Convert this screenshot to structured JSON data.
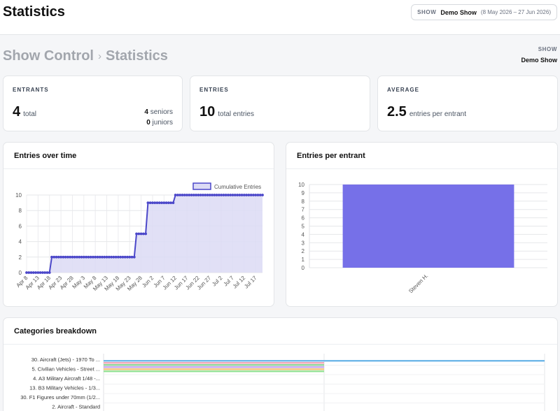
{
  "header": {
    "title": "Statistics",
    "show_label": "SHOW",
    "show_name": "Demo Show",
    "show_dates": "(8 May 2026 – 27 Jun 2026)"
  },
  "page": {
    "breadcrumb_root": "Show Control",
    "breadcrumb_sep": "›",
    "breadcrumb_current": "Statistics",
    "show_label": "SHOW",
    "show_name": "Demo Show"
  },
  "stats": {
    "entrants": {
      "label": "ENTRANTS",
      "value": "4",
      "unit": "total",
      "seniors_count": "4",
      "seniors_label": "seniors",
      "juniors_count": "0",
      "juniors_label": "juniors"
    },
    "entries": {
      "label": "ENTRIES",
      "value": "10",
      "unit": "total entries"
    },
    "average": {
      "label": "AVERAGE",
      "value": "2.5",
      "unit": "entries per entrant"
    }
  },
  "panels": {
    "entries_over_time": "Entries over time",
    "entries_per_entrant": "Entries per entrant",
    "categories_breakdown": "Categories breakdown"
  },
  "chart_data": [
    {
      "type": "area",
      "title": "Entries over time",
      "legend": "Cumulative Entries",
      "legend_position": "top-right",
      "x_tick_labels": [
        "Apr 8",
        "Apr 13",
        "Apr 18",
        "Apr 23",
        "Apr 28",
        "May 3",
        "May 8",
        "May 13",
        "May 18",
        "May 23",
        "May 28",
        "Jun 2",
        "Jun 7",
        "Jun 12",
        "Jun 17",
        "Jun 22",
        "Jun 27",
        "Jul 2",
        "Jul 7",
        "Jul 12",
        "Jul 17"
      ],
      "x_range": [
        "Apr 8",
        "Jul 20"
      ],
      "y_ticks": [
        0,
        2,
        4,
        6,
        8,
        10
      ],
      "ylim": [
        0,
        10
      ],
      "grid": true,
      "color": "#4b47c9",
      "fill": "#dcdbf5",
      "series": [
        {
          "x": [
            "Apr 8",
            "Apr 18",
            "Apr 19",
            "May 25",
            "May 26",
            "May 30",
            "May 31",
            "Jun 11",
            "Jun 12",
            "Jul 20"
          ],
          "values": [
            0,
            0,
            2,
            2,
            5,
            5,
            9,
            9,
            10,
            10
          ]
        }
      ]
    },
    {
      "type": "bar",
      "title": "Entries per entrant",
      "categories": [
        "Steven H."
      ],
      "values": [
        10
      ],
      "ylim": [
        0,
        10
      ],
      "y_ticks": [
        0,
        1,
        2,
        3,
        4,
        5,
        6,
        7,
        8,
        9,
        10
      ],
      "grid": true,
      "color": "#7670e8"
    },
    {
      "type": "bar",
      "title": "Categories breakdown",
      "orientation": "horizontal",
      "categories": [
        "30. Aircraft (Jets) - 1970 To ...",
        "5. Civilian Vehicles - Street ...",
        "4. A3 Military Aircraft 1/48 -...",
        "13. B3 Military Vehicles - 1/3...",
        "30. F1 Figures under 70mm (1/2...",
        "2. Aircraft - Standard"
      ],
      "values": [
        2,
        1,
        1,
        1,
        1,
        1
      ],
      "bar_colors": [
        "#6fb7e8",
        "#f3a6b8",
        "#8fd39a",
        "#c9a6f0",
        "#f3c77a",
        "#98e39a"
      ],
      "grid": true
    }
  ]
}
